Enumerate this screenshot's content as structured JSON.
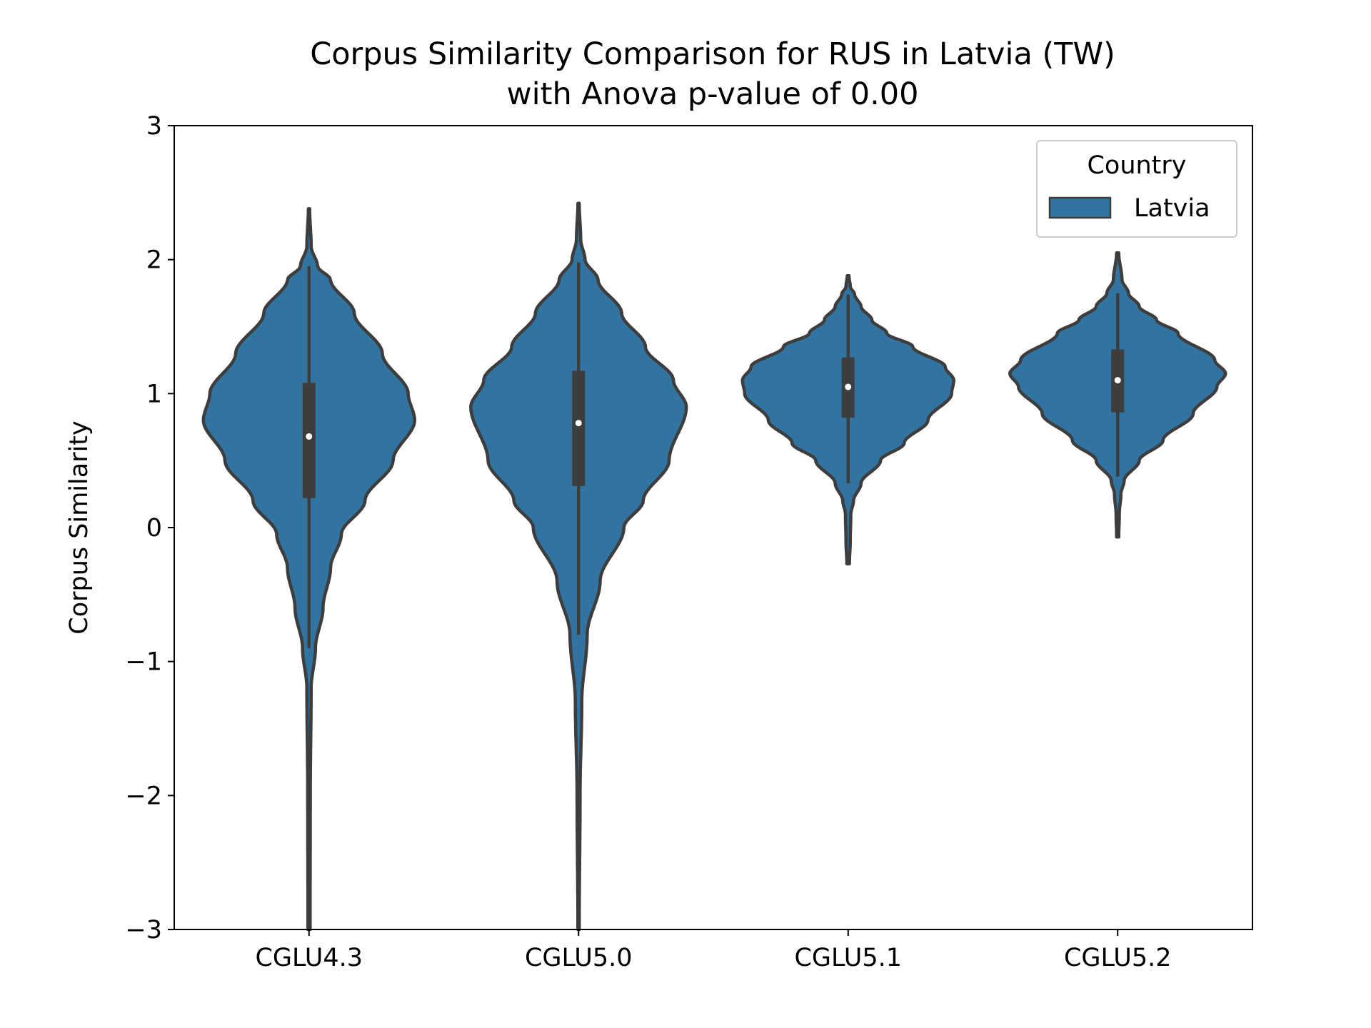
{
  "chart_data": {
    "type": "violin",
    "title_line1": "Corpus Similarity Comparison for RUS in Latvia (TW)",
    "title_line2": "with Anova p-value of 0.00",
    "xlabel": "",
    "ylabel": "Corpus Similarity",
    "ylim": [
      -3,
      3
    ],
    "yticks": [
      -3,
      -2,
      -1,
      0,
      1,
      2,
      3
    ],
    "ytick_labels": [
      "−3",
      "−2",
      "−1",
      "0",
      "1",
      "2",
      "3"
    ],
    "categories": [
      "CGLU4.3",
      "CGLU5.0",
      "CGLU5.1",
      "CGLU5.2"
    ],
    "legend": {
      "title": "Country",
      "entries": [
        "Latvia"
      ],
      "placement": "top-right"
    },
    "colors": {
      "fill": "#3274a1",
      "edge": "#3d3d3d",
      "median": "#ffffff"
    },
    "series": [
      {
        "name": "Latvia",
        "violins": [
          {
            "category": "CGLU4.3",
            "median": 0.68,
            "q1": 0.22,
            "q3": 1.08,
            "whisker_low": -0.9,
            "whisker_high": 1.95,
            "density": [
              [
                -3.0,
                0.01
              ],
              [
                -2.0,
                0.012
              ],
              [
                -1.2,
                0.02
              ],
              [
                -0.9,
                0.06
              ],
              [
                -0.6,
                0.13
              ],
              [
                -0.3,
                0.2
              ],
              [
                -0.05,
                0.3
              ],
              [
                0.2,
                0.52
              ],
              [
                0.5,
                0.78
              ],
              [
                0.8,
                0.98
              ],
              [
                1.0,
                0.92
              ],
              [
                1.3,
                0.68
              ],
              [
                1.6,
                0.42
              ],
              [
                1.85,
                0.2
              ],
              [
                1.95,
                0.08
              ],
              [
                2.1,
                0.02
              ],
              [
                2.38,
                0.006
              ]
            ]
          },
          {
            "category": "CGLU5.0",
            "median": 0.78,
            "q1": 0.31,
            "q3": 1.17,
            "whisker_low": -0.8,
            "whisker_high": 1.98,
            "density": [
              [
                -3.0,
                0.006
              ],
              [
                -2.0,
                0.014
              ],
              [
                -1.3,
                0.03
              ],
              [
                -0.8,
                0.08
              ],
              [
                -0.4,
                0.2
              ],
              [
                0.0,
                0.42
              ],
              [
                0.2,
                0.6
              ],
              [
                0.5,
                0.84
              ],
              [
                0.9,
                1.0
              ],
              [
                1.1,
                0.88
              ],
              [
                1.35,
                0.62
              ],
              [
                1.6,
                0.4
              ],
              [
                1.85,
                0.18
              ],
              [
                2.0,
                0.06
              ],
              [
                2.15,
                0.02
              ],
              [
                2.42,
                0.006
              ]
            ]
          },
          {
            "category": "CGLU5.1",
            "median": 1.05,
            "q1": 0.82,
            "q3": 1.27,
            "whisker_low": 0.33,
            "whisker_high": 1.74,
            "density": [
              [
                -0.27,
                0.012
              ],
              [
                -0.1,
                0.02
              ],
              [
                0.1,
                0.025
              ],
              [
                0.2,
                0.05
              ],
              [
                0.33,
                0.12
              ],
              [
                0.5,
                0.3
              ],
              [
                0.63,
                0.52
              ],
              [
                0.8,
                0.74
              ],
              [
                1.0,
                0.96
              ],
              [
                1.1,
                0.98
              ],
              [
                1.2,
                0.9
              ],
              [
                1.35,
                0.6
              ],
              [
                1.45,
                0.36
              ],
              [
                1.55,
                0.22
              ],
              [
                1.65,
                0.12
              ],
              [
                1.74,
                0.06
              ],
              [
                1.8,
                0.02
              ],
              [
                1.88,
                0.008
              ]
            ]
          },
          {
            "category": "CGLU5.2",
            "median": 1.1,
            "q1": 0.86,
            "q3": 1.33,
            "whisker_low": 0.38,
            "whisker_high": 1.75,
            "density": [
              [
                -0.07,
                0.01
              ],
              [
                0.1,
                0.015
              ],
              [
                0.25,
                0.03
              ],
              [
                0.35,
                0.06
              ],
              [
                0.5,
                0.2
              ],
              [
                0.65,
                0.42
              ],
              [
                0.85,
                0.7
              ],
              [
                1.05,
                0.92
              ],
              [
                1.15,
                1.0
              ],
              [
                1.25,
                0.9
              ],
              [
                1.45,
                0.56
              ],
              [
                1.55,
                0.36
              ],
              [
                1.65,
                0.2
              ],
              [
                1.75,
                0.1
              ],
              [
                1.85,
                0.04
              ],
              [
                2.05,
                0.01
              ]
            ]
          }
        ]
      }
    ]
  }
}
